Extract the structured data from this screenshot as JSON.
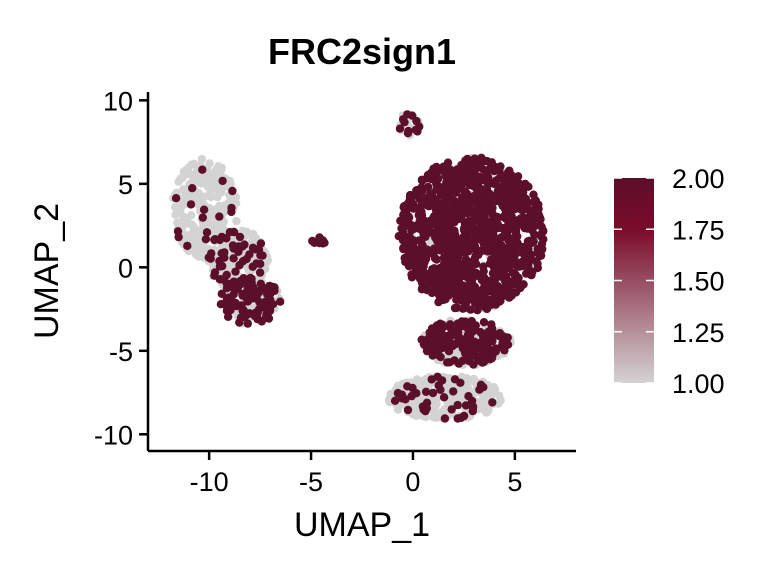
{
  "chart_data": {
    "type": "scatter",
    "title": "FRC2sign1",
    "xlabel": "UMAP_1",
    "ylabel": "UMAP_2",
    "xlim": [
      -13,
      8
    ],
    "ylim": [
      -11,
      10.5
    ],
    "x_ticks": [
      -10,
      -5,
      0,
      5
    ],
    "x_tick_labels": [
      "-10",
      "-5",
      "0",
      "5"
    ],
    "y_ticks": [
      10,
      5,
      0,
      -5,
      -10
    ],
    "y_tick_labels": [
      "10",
      "5",
      "0",
      "-5",
      "-10"
    ],
    "grid": false,
    "legend": {
      "type": "colorbar",
      "placement": "right",
      "min": 1.0,
      "max": 2.0,
      "ticks": [
        2.0,
        1.75,
        1.5,
        1.25,
        1.0
      ],
      "tick_labels": [
        "2.00",
        "1.75",
        "1.50",
        "1.25",
        "1.00"
      ],
      "colors": [
        "#d3d3d3",
        "#7a0a2a",
        "#5c0f2a"
      ]
    },
    "clusters": [
      {
        "name": "left_cluster_top",
        "cx": -10.2,
        "cy": 3.5,
        "rx": 1.6,
        "ry": 3.0,
        "n": 260,
        "high_frac": 0.1
      },
      {
        "name": "left_cluster_mid",
        "cx": -8.6,
        "cy": 0.5,
        "rx": 1.5,
        "ry": 1.8,
        "n": 200,
        "high_frac": 0.25
      },
      {
        "name": "left_cluster_bottom",
        "cx": -8.0,
        "cy": -2.0,
        "rx": 1.5,
        "ry": 1.4,
        "n": 170,
        "high_frac": 0.55
      },
      {
        "name": "small_cluster",
        "cx": -4.6,
        "cy": 1.6,
        "rx": 0.35,
        "ry": 0.2,
        "n": 10,
        "high_frac": 1.0
      },
      {
        "name": "right_main",
        "cx": 2.9,
        "cy": 2.0,
        "rx": 3.6,
        "ry": 4.6,
        "n": 1100,
        "high_frac": 0.96
      },
      {
        "name": "right_top_stub",
        "cx": -0.2,
        "cy": 8.5,
        "rx": 0.6,
        "ry": 0.7,
        "n": 30,
        "high_frac": 0.5
      },
      {
        "name": "right_lower",
        "cx": 2.6,
        "cy": -4.5,
        "rx": 2.2,
        "ry": 1.4,
        "n": 260,
        "high_frac": 0.6
      },
      {
        "name": "right_bottom",
        "cx": 1.6,
        "cy": -7.8,
        "rx": 2.8,
        "ry": 1.3,
        "n": 330,
        "high_frac": 0.12
      }
    ]
  }
}
